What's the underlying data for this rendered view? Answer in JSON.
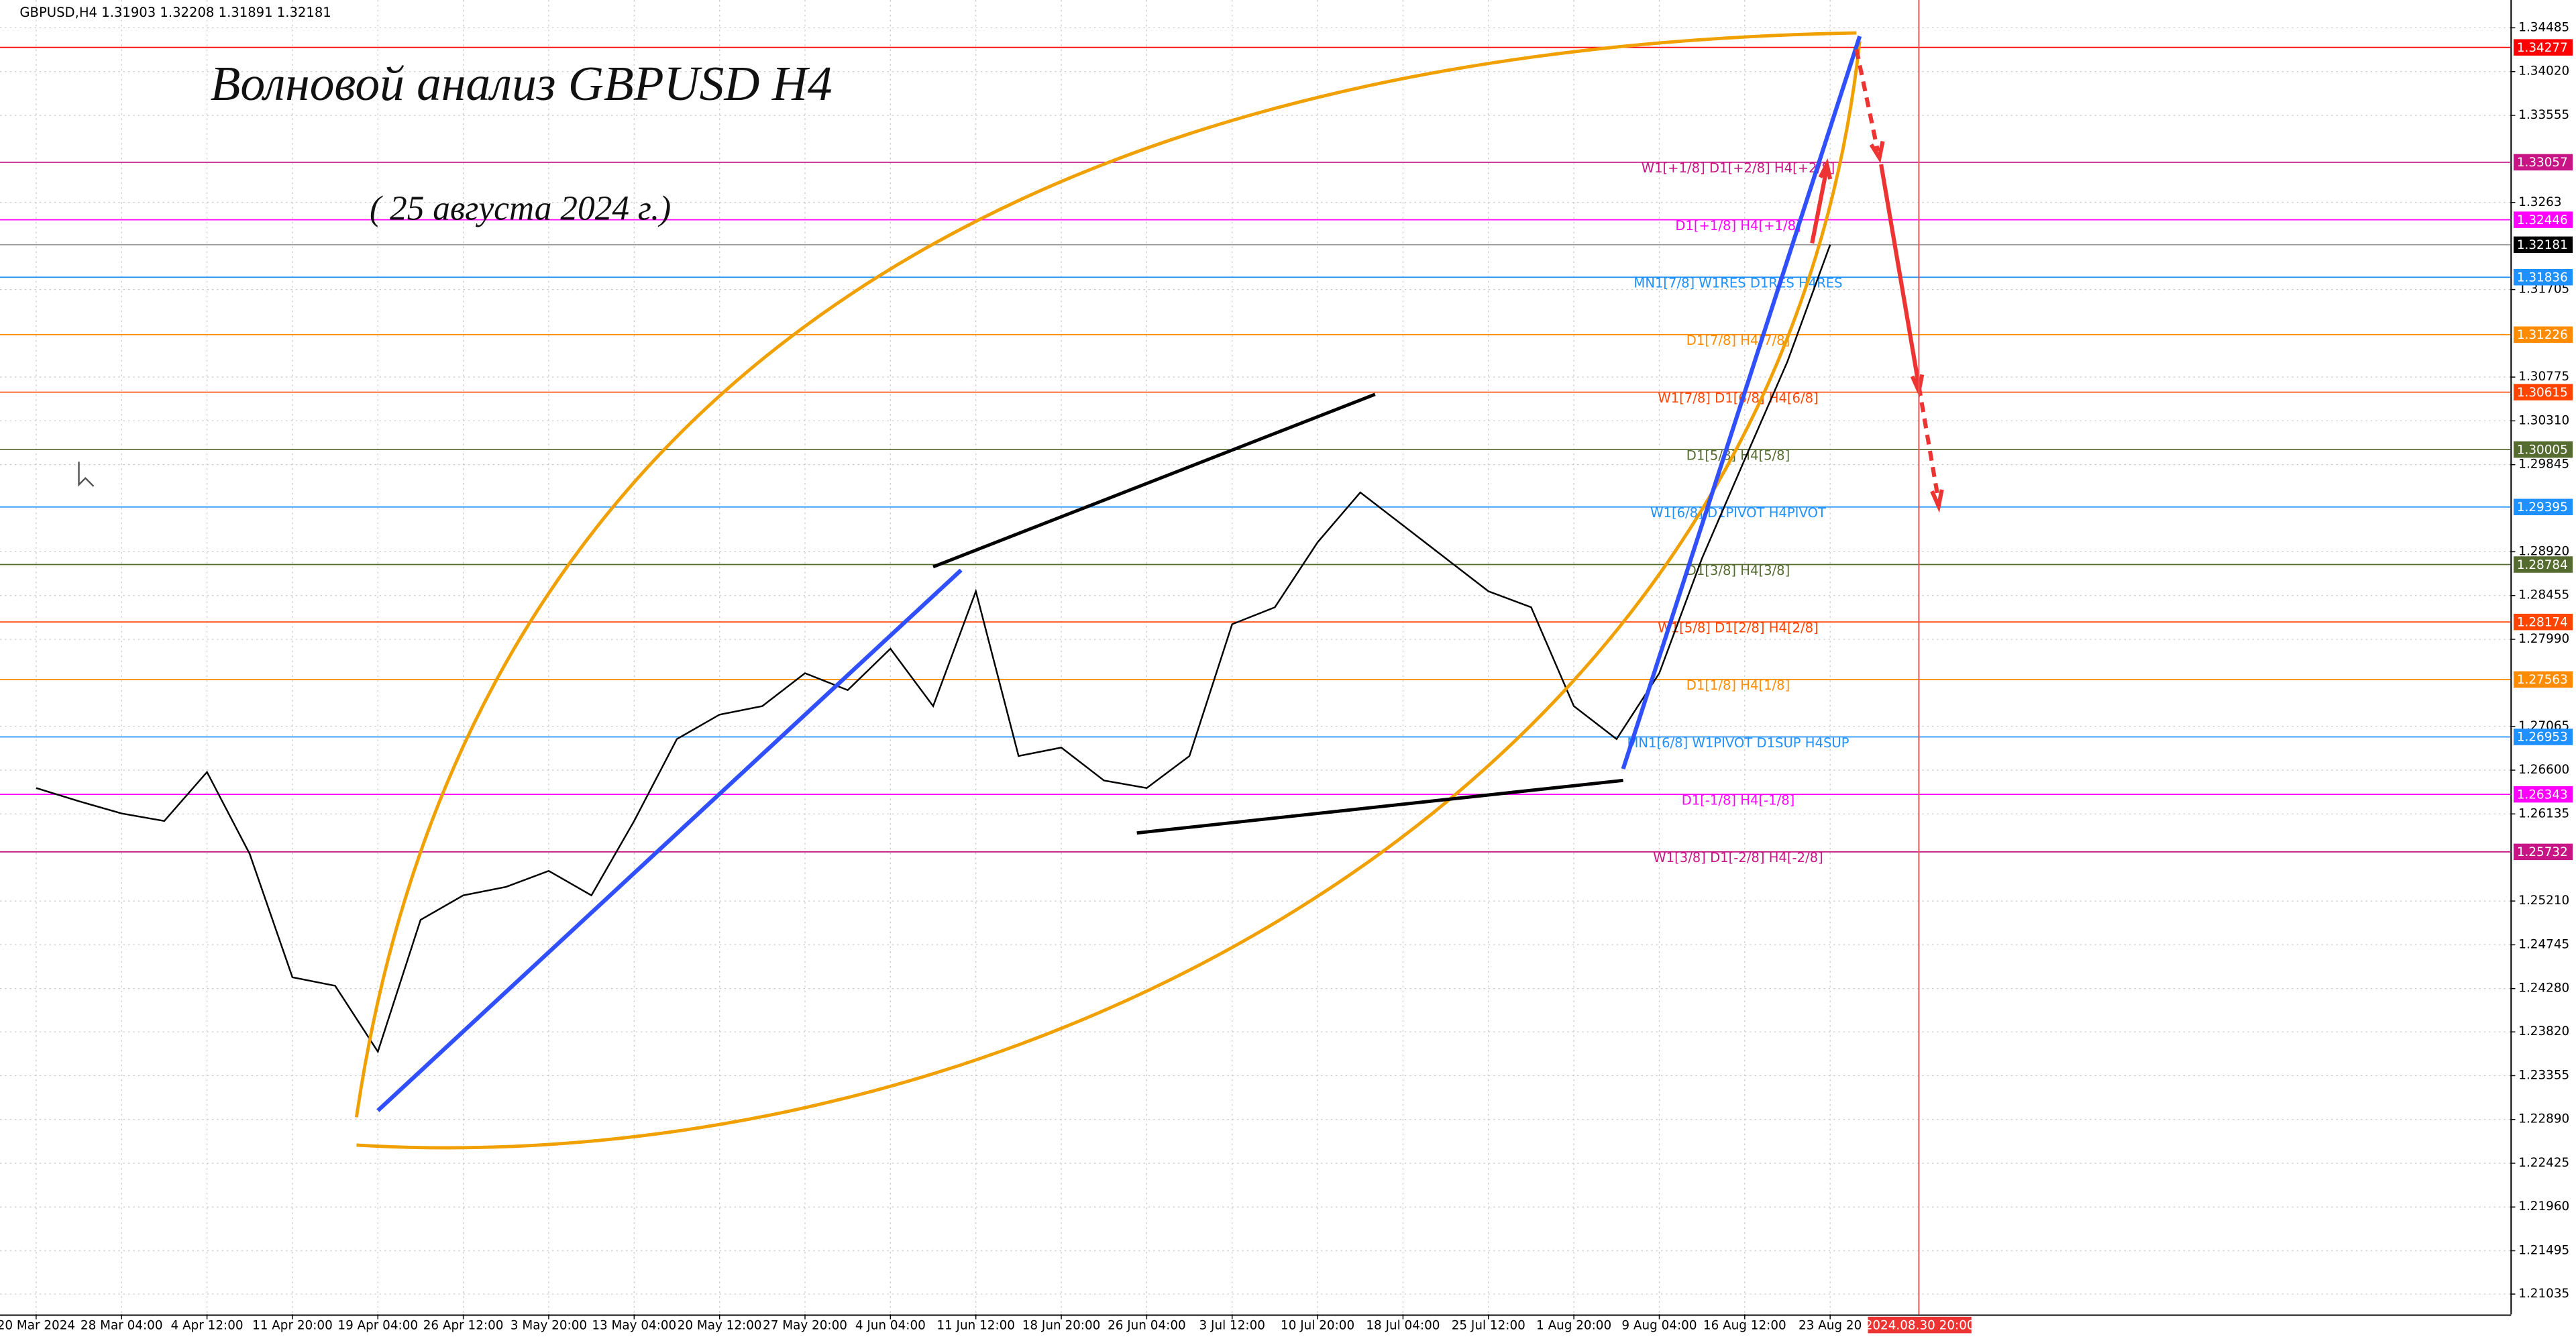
{
  "chart_data": {
    "type": "line",
    "header": "GBPUSD,H4  1.31903 1.32208 1.31891 1.32181",
    "title": "Волновой анализ GBPUSD H4",
    "subtitle": "( 25 августа 2024 г.)",
    "cursor_time": "2024.08.30 20:00",
    "color": "#000000",
    "categories": [
      "20 Mar 2024",
      null,
      "28 Mar 04:00",
      null,
      "4 Apr 12:00",
      null,
      "11 Apr 20:00",
      null,
      "19 Apr 04:00",
      null,
      "26 Apr 12:00",
      null,
      "3 May 20:00",
      null,
      "13 May 04:00",
      null,
      "20 May 12:00",
      null,
      "27 May 20:00",
      null,
      "4 Jun 04:00",
      null,
      "11 Jun 12:00",
      null,
      "18 Jun 20:00",
      null,
      "26 Jun 04:00",
      null,
      "3 Jul 12:00",
      null,
      "10 Jul 20:00",
      null,
      "18 Jul 04:00",
      null,
      "25 Jul 12:00",
      null,
      "1 Aug 20:00",
      null,
      "9 Aug 04:00",
      null,
      "16 Aug 12:00",
      null,
      "23 Aug 20"
    ],
    "values": [
      1.2641,
      1.2627,
      1.2614,
      1.2606,
      1.2658,
      1.2571,
      1.244,
      1.2431,
      1.2361,
      1.2501,
      1.2527,
      1.2536,
      1.2553,
      1.2527,
      1.2606,
      1.2693,
      1.2719,
      1.2728,
      1.2763,
      1.2745,
      1.2789,
      1.2728,
      1.285,
      1.2675,
      1.2684,
      1.2649,
      1.2641,
      1.2675,
      1.2815,
      1.2833,
      1.2902,
      1.2955,
      1.292,
      1.2885,
      1.285,
      1.2833,
      1.2728,
      1.2693,
      1.2763,
      1.2885,
      1.299,
      1.3094,
      1.32181
    ],
    "ylim": [
      1.2082,
      1.3478
    ],
    "yticks": [
      1.34485,
      {
        "value": 1.3402,
        "label": "1.34020"
      },
      1.33555,
      1.3263,
      1.31705,
      1.30775,
      {
        "value": 1.3031,
        "label": "1.30310"
      },
      1.29845,
      {
        "value": 1.2892,
        "label": "1.28920"
      },
      1.28455,
      {
        "value": 1.2799,
        "label": "1.27990"
      },
      1.27065,
      {
        "value": 1.266,
        "label": "1.26600"
      },
      1.26135,
      {
        "value": 1.2521,
        "label": "1.25210"
      },
      1.24745,
      {
        "value": 1.2428,
        "label": "1.24280"
      },
      {
        "value": 1.2382,
        "label": "1.23820"
      },
      1.23355,
      {
        "value": 1.2289,
        "label": "1.22890"
      },
      1.22425,
      {
        "value": 1.2196,
        "label": "1.21960"
      },
      1.21495,
      1.21035
    ],
    "grid": true,
    "levels": [
      {
        "price": 1.34277,
        "color": "#ff0000"
      },
      {
        "price": 1.33057,
        "color": "#c71585",
        "label": "W1[+1/8] D1[+2/8] H4[+2/8]"
      },
      {
        "price": 1.32446,
        "color": "#ff00ff",
        "label": "D1[+1/8] H4[+1/8]"
      },
      {
        "price": 1.32181,
        "color": "#000000"
      },
      {
        "price": 1.31836,
        "color": "#1e90ff",
        "label": "MN1[7/8] W1RES D1RES H4RES"
      },
      {
        "price": 1.31226,
        "color": "#ff8c00",
        "label": "D1[7/8] H4[7/8]"
      },
      {
        "price": 1.30615,
        "color": "#ff4500",
        "label": "W1[7/8] D1[6/8] H4[6/8]"
      },
      {
        "price": 1.30005,
        "color": "#556b2f",
        "label": "D1[5/8] H4[5/8]"
      },
      {
        "price": 1.29395,
        "color": "#1e90ff",
        "label": "W1[6/8] D1PIVOT H4PIVOT"
      },
      {
        "price": 1.28784,
        "color": "#556b2f",
        "label": "D1[3/8] H4[3/8]"
      },
      {
        "price": 1.28174,
        "color": "#ff4500",
        "label": "W1[5/8] D1[2/8] H4[2/8]"
      },
      {
        "price": 1.27563,
        "color": "#ff8c00",
        "label": "D1[1/8] H4[1/8]"
      },
      {
        "price": 1.26953,
        "color": "#1e90ff",
        "label": "MN1[6/8] W1PIVOT D1SUP H4SUP"
      },
      {
        "price": 1.26343,
        "color": "#ff00ff",
        "label": "D1[-1/8] H4[-1/8]"
      },
      {
        "price": 1.25732,
        "color": "#c71585",
        "label": "W1[3/8] D1[-2/8] H4[-2/8]"
      }
    ]
  }
}
